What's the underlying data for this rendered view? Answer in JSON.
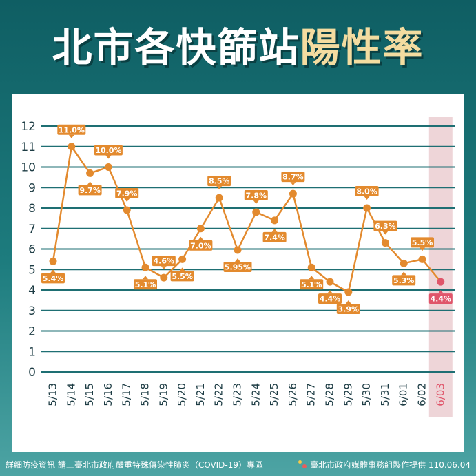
{
  "header": {
    "title_main": "北市各快篩站",
    "title_accent": "陽性率"
  },
  "footer": {
    "info": "詳細防疫資訊 請上臺北市政府嚴重特殊傳染性肺炎（COVID-19）專區",
    "credit": "臺北市政府媒體事務組製作提供 110.06.04"
  },
  "colors": {
    "line": "#e38a2e",
    "highlight": "#e0556a",
    "grid": "#1e6f73",
    "band": "#e8c7cb"
  },
  "chart_data": {
    "type": "line",
    "title": "北市各快篩站陽性率",
    "categories": [
      "5/13",
      "5/14",
      "5/15",
      "5/16",
      "5/17",
      "5/18",
      "5/19",
      "5/20",
      "5/21",
      "5/22",
      "5/23",
      "5/24",
      "5/25",
      "5/26",
      "5/27",
      "5/28",
      "5/29",
      "5/30",
      "5/31",
      "6/01",
      "6/02",
      "6/03"
    ],
    "values": [
      5.4,
      11.0,
      9.7,
      10.0,
      7.9,
      5.1,
      4.6,
      5.5,
      7.0,
      8.5,
      5.95,
      7.8,
      7.4,
      8.7,
      5.1,
      4.4,
      3.9,
      8.0,
      6.3,
      5.3,
      5.5,
      4.4
    ],
    "data_labels": [
      "5.4%",
      "11.0%",
      "9.7%",
      "10.0%",
      "7.9%",
      "5.1%",
      "4.6%",
      "5.5%",
      "7.0%",
      "8.5%",
      "5.95%",
      "7.8%",
      "7.4%",
      "8.7%",
      "5.1%",
      "4.4%",
      "3.9%",
      "8.0%",
      "6.3%",
      "5.3%",
      "5.5%",
      "4.4%"
    ],
    "label_pos": [
      "below",
      "above",
      "below",
      "above",
      "above",
      "below",
      "above",
      "below",
      "below",
      "above",
      "below",
      "above",
      "below",
      "above",
      "below",
      "below",
      "below",
      "above",
      "above",
      "below",
      "above",
      "below"
    ],
    "highlight_category": "6/03",
    "ylim": [
      0,
      12
    ],
    "yticks": [
      0,
      1,
      2,
      3,
      4,
      5,
      6,
      7,
      8,
      9,
      10,
      11,
      12
    ],
    "xlabel": "",
    "ylabel": "",
    "grid": true
  }
}
